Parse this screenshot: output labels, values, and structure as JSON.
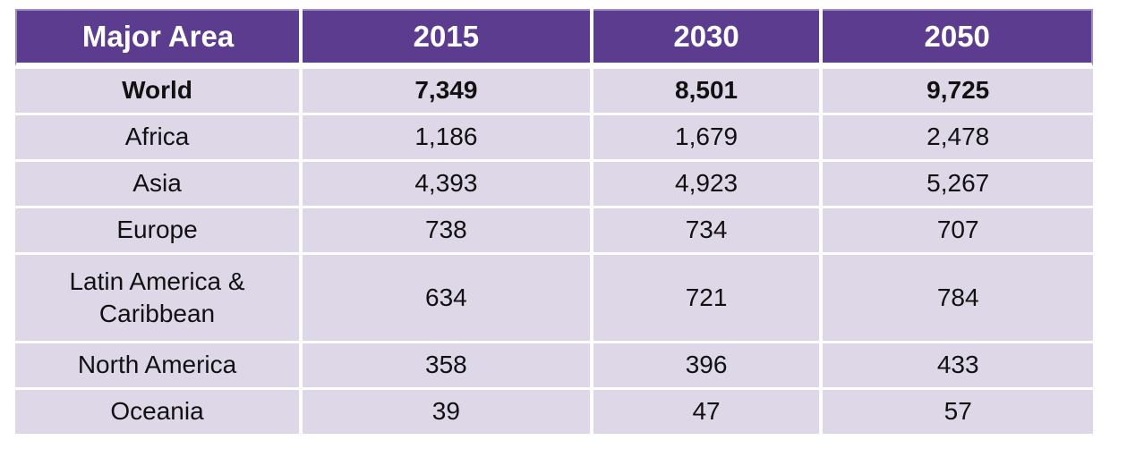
{
  "colors": {
    "header_bg": "#5B3C8F",
    "header_border": "#9C8EC6",
    "row_bg": "#DDD7E7",
    "header_text": "#FFFFFF",
    "cell_text": "#111111",
    "page_bg": "#FFFFFF"
  },
  "table": {
    "headers": [
      "Major Area",
      "2015",
      "2030",
      "2050"
    ],
    "rows": [
      {
        "area": "World",
        "v2015": "7,349",
        "v2030": "8,501",
        "v2050": "9,725"
      },
      {
        "area": "Africa",
        "v2015": "1,186",
        "v2030": "1,679",
        "v2050": "2,478"
      },
      {
        "area": "Asia",
        "v2015": "4,393",
        "v2030": "4,923",
        "v2050": "5,267"
      },
      {
        "area": "Europe",
        "v2015": "738",
        "v2030": "734",
        "v2050": "707"
      },
      {
        "area": "Latin America & Caribbean",
        "v2015": "634",
        "v2030": "721",
        "v2050": "784"
      },
      {
        "area": "North America",
        "v2015": "358",
        "v2030": "396",
        "v2050": "433"
      },
      {
        "area": "Oceania",
        "v2015": "39",
        "v2030": "47",
        "v2050": "57"
      }
    ]
  },
  "chart_data": {
    "type": "table",
    "columns": [
      "Major Area",
      "2015",
      "2030",
      "2050"
    ],
    "rows": [
      [
        "World",
        7349,
        8501,
        9725
      ],
      [
        "Africa",
        1186,
        1679,
        2478
      ],
      [
        "Asia",
        4393,
        4923,
        5267
      ],
      [
        "Europe",
        738,
        734,
        707
      ],
      [
        "Latin America & Caribbean",
        634,
        721,
        784
      ],
      [
        "North America",
        358,
        396,
        433
      ],
      [
        "Oceania",
        39,
        47,
        57
      ]
    ]
  }
}
